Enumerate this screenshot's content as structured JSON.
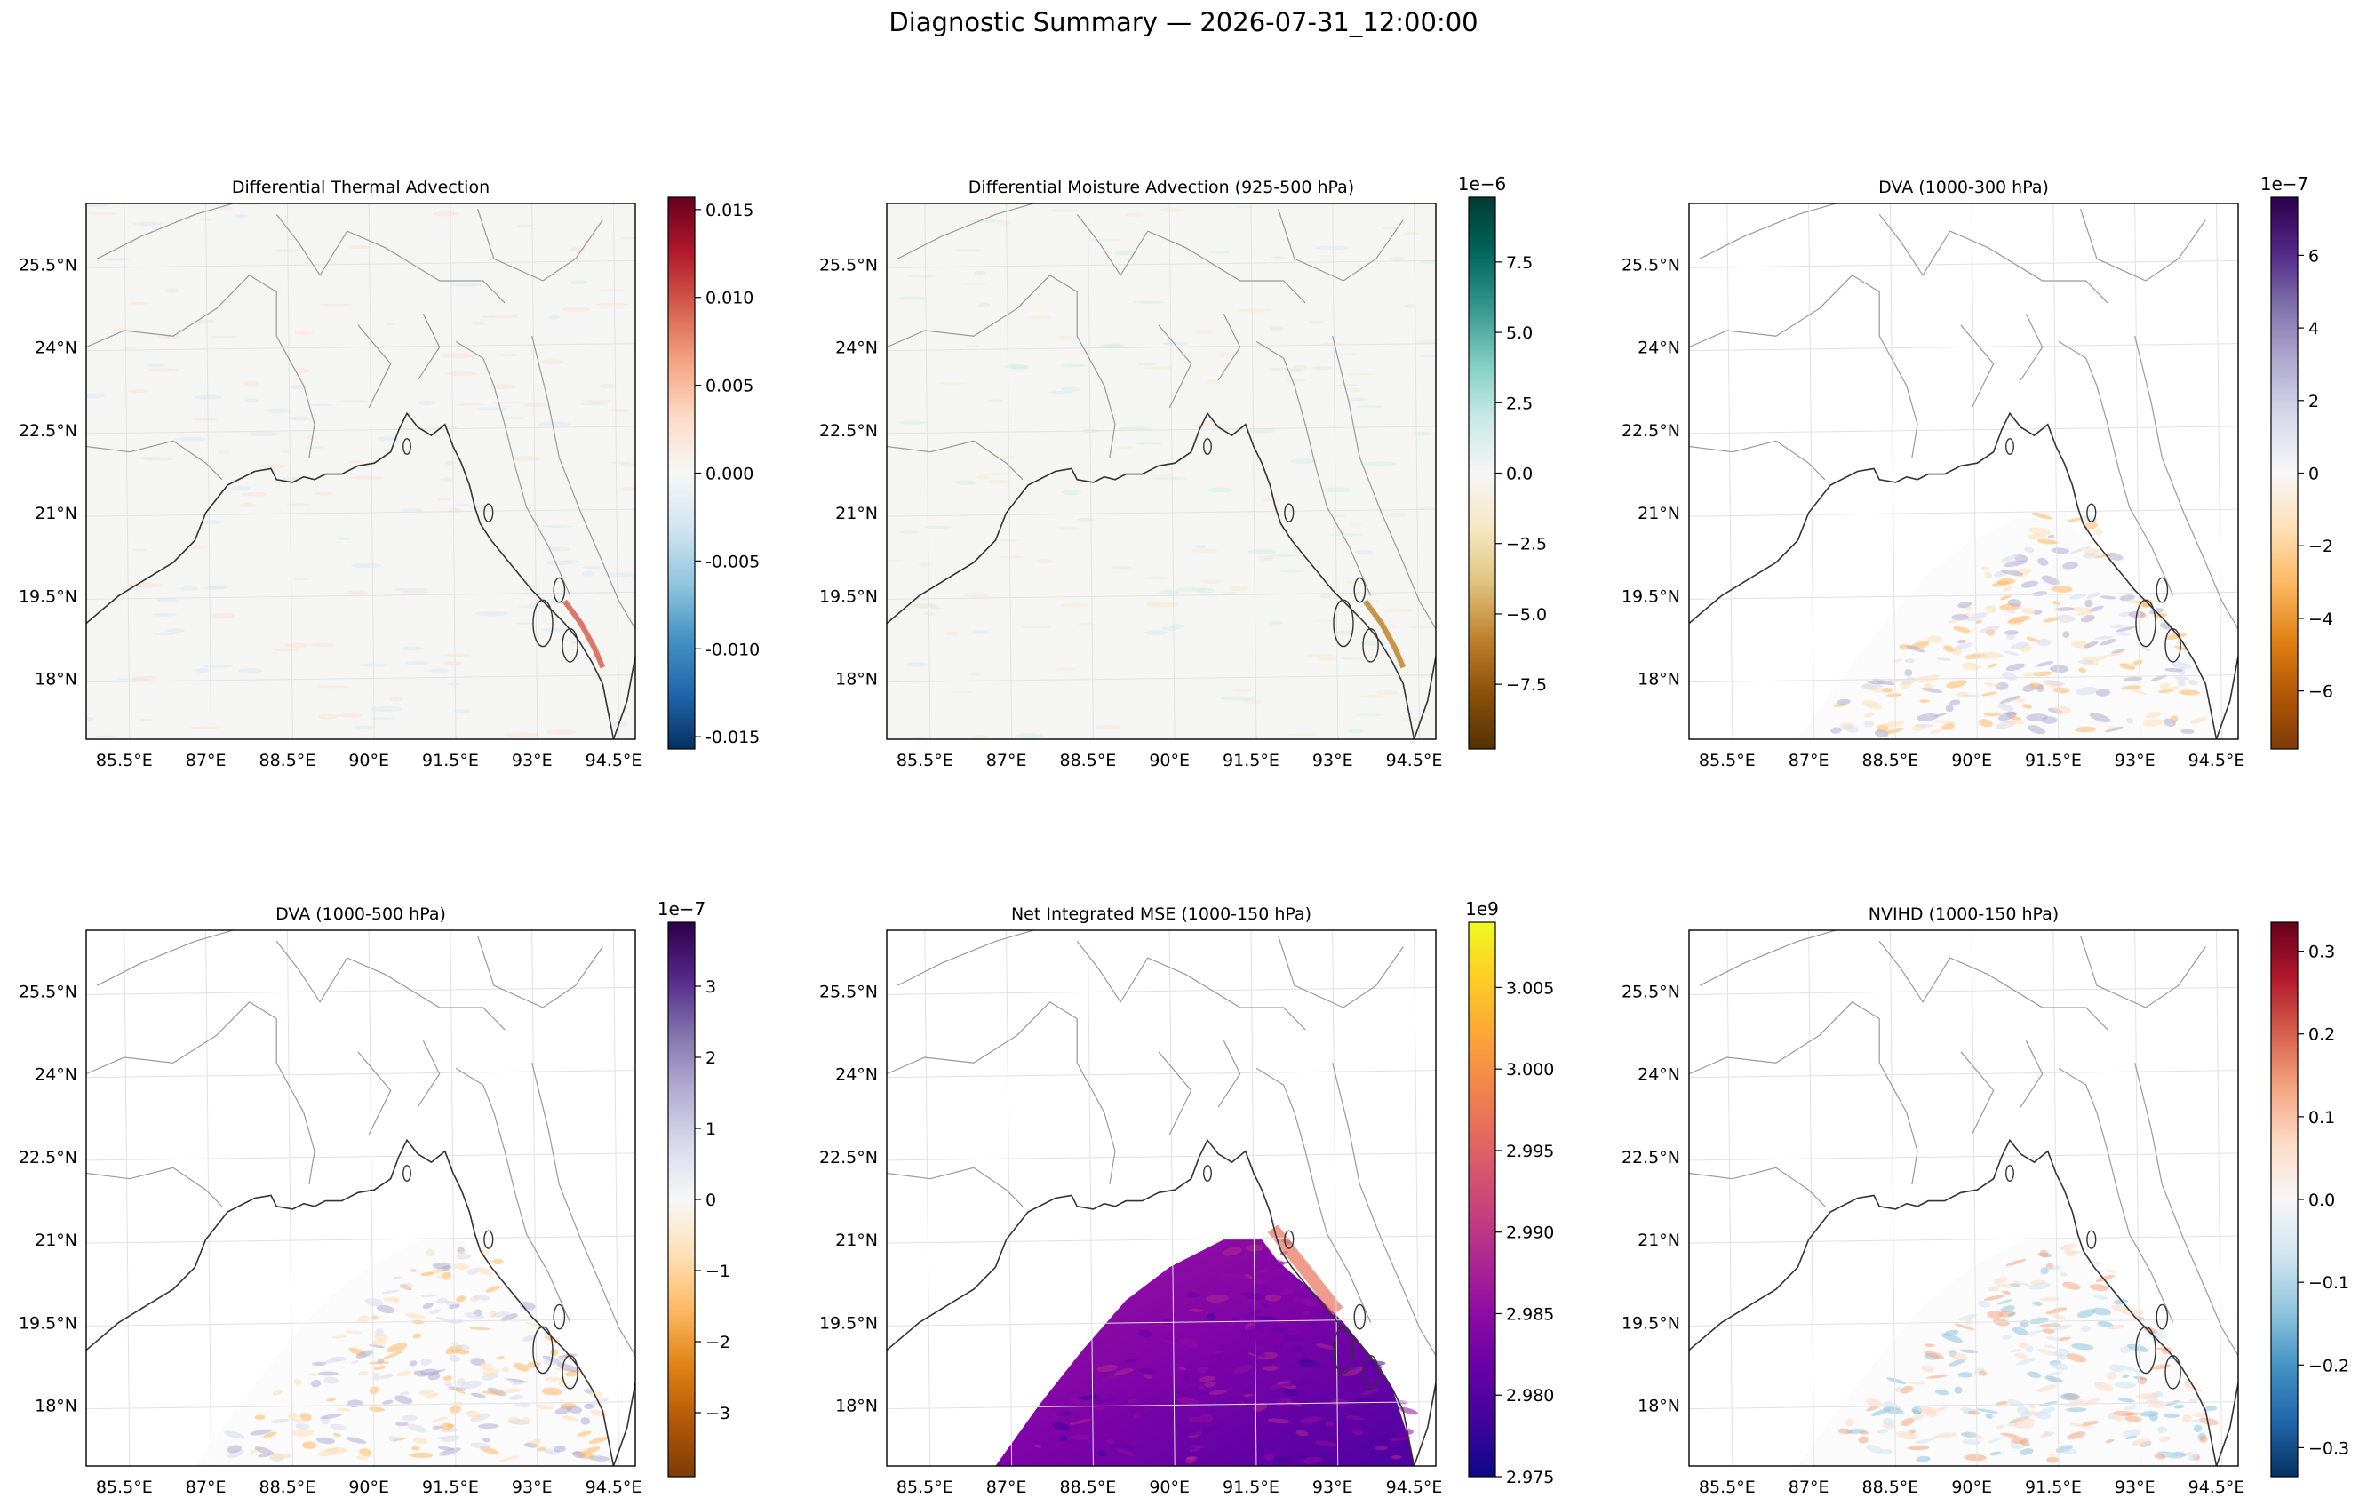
{
  "figure": {
    "title": "Diagnostic Summary — 2026-07-31_12:00:00"
  },
  "colors": {
    "coastline": "#333333",
    "border": "#9a9a9a",
    "grid": "#e2e2e2",
    "ocean_bg": "#f5f5f4"
  },
  "chart_data": [
    {
      "type": "heatmap",
      "title": "Differential Thermal Advection",
      "xticks": [
        "85.5°E",
        "87°E",
        "88.5°E",
        "90°E",
        "91.5°E",
        "93°E",
        "94.5°E"
      ],
      "yticks": [
        "25.5°N",
        "24°N",
        "22.5°N",
        "21°N",
        "19.5°N",
        "18°N"
      ],
      "xlim": [
        84.8,
        94.9
      ],
      "ylim": [
        16.9,
        26.6
      ],
      "colormap": "RdBu_r",
      "colorbar": {
        "min": -0.0157,
        "max": 0.0157,
        "scale_label": "",
        "ticks": [
          "-0.015",
          "-0.010",
          "-0.005",
          "0.000",
          "0.005",
          "0.010",
          "0.015"
        ],
        "tick_values": [
          -0.015,
          -0.01,
          -0.005,
          0.0,
          0.005,
          0.01,
          0.015
        ]
      }
    },
    {
      "type": "heatmap",
      "title": "Differential Moisture Advection (925-500 hPa)",
      "xticks": [
        "85.5°E",
        "87°E",
        "88.5°E",
        "90°E",
        "91.5°E",
        "93°E",
        "94.5°E"
      ],
      "yticks": [
        "25.5°N",
        "24°N",
        "22.5°N",
        "21°N",
        "19.5°N",
        "18°N"
      ],
      "xlim": [
        84.8,
        94.9
      ],
      "ylim": [
        16.9,
        26.6
      ],
      "colormap": "BrBG",
      "colorbar": {
        "min": -9.8,
        "max": 9.8,
        "scale_label": "1e−6",
        "ticks": [
          "−7.5",
          "−5.0",
          "−2.5",
          "0.0",
          "2.5",
          "5.0",
          "7.5"
        ],
        "tick_values": [
          -7.5,
          -5.0,
          -2.5,
          0.0,
          2.5,
          5.0,
          7.5
        ]
      }
    },
    {
      "type": "heatmap",
      "title": "DVA (1000-300 hPa)",
      "xticks": [
        "85.5°E",
        "87°E",
        "88.5°E",
        "90°E",
        "91.5°E",
        "93°E",
        "94.5°E"
      ],
      "yticks": [
        "25.5°N",
        "24°N",
        "22.5°N",
        "21°N",
        "19.5°N",
        "18°N"
      ],
      "xlim": [
        84.8,
        94.9
      ],
      "ylim": [
        16.9,
        26.6
      ],
      "colormap": "PuOr",
      "colorbar": {
        "min": -7.6,
        "max": 7.6,
        "scale_label": "1e−7",
        "ticks": [
          "−6",
          "−4",
          "−2",
          "0",
          "2",
          "4",
          "6"
        ],
        "tick_values": [
          -6,
          -4,
          -2,
          0,
          2,
          4,
          6
        ]
      }
    },
    {
      "type": "heatmap",
      "title": "DVA (1000-500 hPa)",
      "xticks": [
        "85.5°E",
        "87°E",
        "88.5°E",
        "90°E",
        "91.5°E",
        "93°E",
        "94.5°E"
      ],
      "yticks": [
        "25.5°N",
        "24°N",
        "22.5°N",
        "21°N",
        "19.5°N",
        "18°N"
      ],
      "xlim": [
        84.8,
        94.9
      ],
      "ylim": [
        16.9,
        26.6
      ],
      "colormap": "PuOr",
      "colorbar": {
        "min": -3.9,
        "max": 3.9,
        "scale_label": "1e−7",
        "ticks": [
          "−3",
          "−2",
          "−1",
          "0",
          "1",
          "2",
          "3"
        ],
        "tick_values": [
          -3,
          -2,
          -1,
          0,
          1,
          2,
          3
        ]
      }
    },
    {
      "type": "heatmap",
      "title": "Net Integrated MSE (1000-150 hPa)",
      "xticks": [
        "85.5°E",
        "87°E",
        "88.5°E",
        "90°E",
        "91.5°E",
        "93°E",
        "94.5°E"
      ],
      "yticks": [
        "25.5°N",
        "24°N",
        "22.5°N",
        "21°N",
        "19.5°N",
        "18°N"
      ],
      "xlim": [
        84.8,
        94.9
      ],
      "ylim": [
        16.9,
        26.6
      ],
      "colormap": "plasma",
      "colorbar": {
        "min": 2.975,
        "max": 3.009,
        "scale_label": "1e9",
        "ticks": [
          "2.975",
          "2.980",
          "2.985",
          "2.990",
          "2.995",
          "3.000",
          "3.005"
        ],
        "tick_values": [
          2.975,
          2.98,
          2.985,
          2.99,
          2.995,
          3.0,
          3.005
        ]
      }
    },
    {
      "type": "heatmap",
      "title": "NVIHD (1000-150 hPa)",
      "xticks": [
        "85.5°E",
        "87°E",
        "88.5°E",
        "90°E",
        "91.5°E",
        "93°E",
        "94.5°E"
      ],
      "yticks": [
        "25.5°N",
        "24°N",
        "22.5°N",
        "21°N",
        "19.5°N",
        "18°N"
      ],
      "xlim": [
        84.8,
        94.9
      ],
      "ylim": [
        16.9,
        26.6
      ],
      "colormap": "RdBu_r",
      "colorbar": {
        "min": -0.335,
        "max": 0.335,
        "scale_label": "",
        "ticks": [
          "−0.3",
          "−0.2",
          "−0.1",
          "0.0",
          "0.1",
          "0.2",
          "0.3"
        ],
        "tick_values": [
          -0.3,
          -0.2,
          -0.1,
          0.0,
          0.1,
          0.2,
          0.3
        ]
      }
    }
  ]
}
